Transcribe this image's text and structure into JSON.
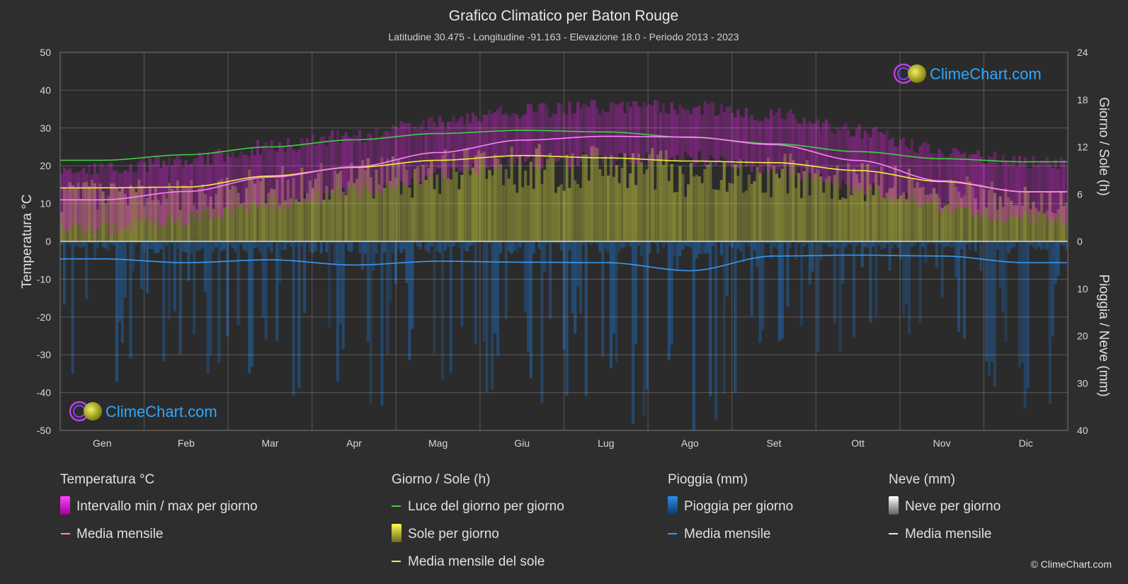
{
  "header": {
    "title": "Grafico Climatico per Baton Rouge",
    "subtitle": "Latitudine 30.475 - Longitudine -91.163 - Elevazione 18.0 - Periodo 2013 - 2023"
  },
  "brand": {
    "name": "ClimeChart.com",
    "copyright": "© ClimeChart.com"
  },
  "colors": {
    "background": "#2e2e2e",
    "temp_range": "#e020e0",
    "temp_mean": "#ff80ff",
    "daylight": "#40d040",
    "sun_bars": "#c8c840",
    "sun_mean": "#f0f040",
    "rain_bars": "#1e78c8",
    "rain_mean": "#3a9af0",
    "brand": "#2ea8ff"
  },
  "legend": {
    "temp_head": "Temperatura °C",
    "temp_range": "Intervallo min / max per giorno",
    "temp_mean": "Media mensile",
    "sun_head": "Giorno / Sole (h)",
    "daylight": "Luce del giorno per giorno",
    "sun_day": "Sole per giorno",
    "sun_mean": "Media mensile del sole",
    "rain_head": "Pioggia (mm)",
    "rain_day": "Pioggia per giorno",
    "rain_mean": "Media mensile",
    "snow_head": "Neve (mm)",
    "snow_day": "Neve per giorno",
    "snow_mean": "Media mensile"
  },
  "chart_data": {
    "type": "line",
    "x_label": "",
    "y_left_label": "Temperatura °C",
    "y_right_top_label": "Giorno / Sole (h)",
    "y_right_bottom_label": "Pioggia / Neve (mm)",
    "months": [
      "Gen",
      "Feb",
      "Mar",
      "Apr",
      "Mag",
      "Giu",
      "Lug",
      "Ago",
      "Set",
      "Ott",
      "Nov",
      "Dic"
    ],
    "y_left_ticks": [
      50,
      40,
      30,
      20,
      10,
      0,
      -10,
      -20,
      -30,
      -40,
      -50
    ],
    "y_left_range": [
      -50,
      50
    ],
    "y_right_top_ticks": [
      24,
      18,
      12,
      6,
      0
    ],
    "y_right_top_range": [
      0,
      24
    ],
    "y_right_bottom_ticks": [
      0,
      10,
      20,
      30,
      40
    ],
    "y_right_bottom_range": [
      0,
      40
    ],
    "grid": true,
    "series": [
      {
        "name": "Media mensile",
        "key": "temp_mean",
        "unit": "°C",
        "values": [
          11.0,
          13.2,
          17.0,
          19.7,
          23.5,
          26.8,
          27.8,
          27.6,
          25.6,
          21.4,
          16.0,
          13.1
        ]
      },
      {
        "name": "Intervallo min / max per giorno",
        "key": "temp_range",
        "unit": "°C",
        "min": [
          5.5,
          8.0,
          12.0,
          15.0,
          19.5,
          23.0,
          24.0,
          24.0,
          21.5,
          16.0,
          11.0,
          8.0
        ],
        "max": [
          17.0,
          19.5,
          23.0,
          26.0,
          29.5,
          32.5,
          33.5,
          33.5,
          31.5,
          27.0,
          22.0,
          19.0
        ]
      },
      {
        "name": "Luce del giorno per giorno",
        "key": "daylight",
        "unit": "h",
        "values": [
          10.3,
          11.0,
          12.0,
          12.9,
          13.7,
          14.1,
          13.9,
          13.2,
          12.4,
          11.4,
          10.5,
          10.1
        ]
      },
      {
        "name": "Media mensile del sole",
        "key": "sun_mean",
        "unit": "h",
        "values": [
          6.8,
          6.9,
          8.3,
          9.4,
          10.3,
          10.9,
          10.6,
          10.2,
          10.0,
          9.0,
          7.6,
          6.3
        ]
      },
      {
        "name": "Media mensile",
        "key": "rain_mean",
        "unit": "mm",
        "values": [
          3.7,
          4.5,
          3.9,
          5.0,
          4.2,
          4.4,
          4.5,
          6.2,
          3.1,
          2.9,
          3.1,
          4.5
        ]
      }
    ]
  }
}
